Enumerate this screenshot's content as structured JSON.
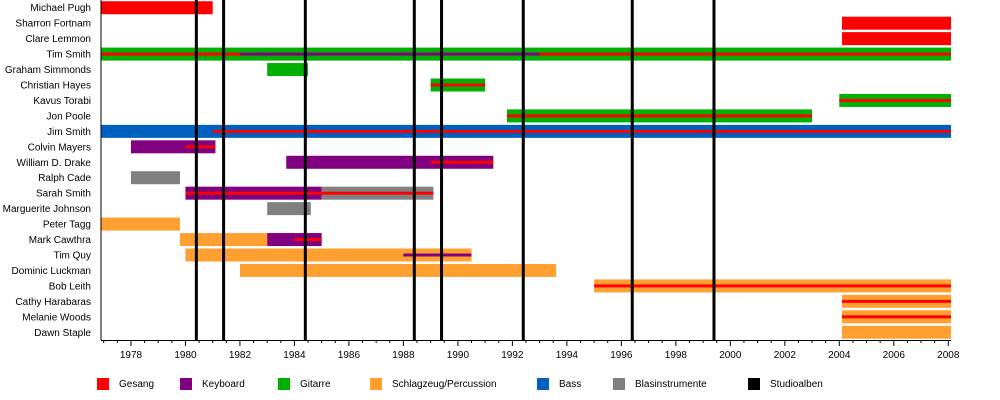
{
  "chart_data": {
    "type": "timeline",
    "title": "",
    "xlim": [
      1976.9,
      2008.1
    ],
    "x_ticks": [
      1978,
      1980,
      1982,
      1984,
      1986,
      1988,
      1990,
      1992,
      1994,
      1996,
      1998,
      2000,
      2002,
      2004,
      2006,
      2008
    ],
    "studio_albums": [
      1980.4,
      1981.4,
      1984.4,
      1988.4,
      1989.4,
      1992.4,
      1996.4,
      1999.4
    ],
    "colors": {
      "Gesang": "#ff0000",
      "Keyboard": "#800080",
      "Gitarre": "#00b000",
      "Schlagzeug/Percussion": "#ffa030",
      "Bass": "#0060c0",
      "Blasinstrumente": "#808080",
      "Studioalben": "#000000"
    },
    "members": [
      {
        "name": "Michael Pugh",
        "bars": [
          {
            "role": "Gesang",
            "start": 1976.9,
            "end": 1981.0
          }
        ],
        "lines": []
      },
      {
        "name": "Sharron Fortnam",
        "bars": [
          {
            "role": "Gesang",
            "start": 2004.1,
            "end": 2008.1
          }
        ],
        "lines": []
      },
      {
        "name": "Clare Lemmon",
        "bars": [
          {
            "role": "Gesang",
            "start": 2004.1,
            "end": 2008.1
          }
        ],
        "lines": []
      },
      {
        "name": "Tim Smith",
        "bars": [
          {
            "role": "Gitarre",
            "start": 1976.9,
            "end": 2008.1
          }
        ],
        "lines": [
          {
            "role": "Gesang",
            "start": 1976.9,
            "end": 1982.0
          },
          {
            "role": "Keyboard",
            "start": 1982.0,
            "end": 1993.0
          },
          {
            "role": "Gesang",
            "start": 1993.0,
            "end": 2008.1
          }
        ]
      },
      {
        "name": "Graham Simmonds",
        "bars": [
          {
            "role": "Gitarre",
            "start": 1983.0,
            "end": 1984.5
          }
        ],
        "lines": []
      },
      {
        "name": "Christian Hayes",
        "bars": [
          {
            "role": "Gitarre",
            "start": 1989.0,
            "end": 1991.0
          }
        ],
        "lines": [
          {
            "role": "Gesang",
            "start": 1989.0,
            "end": 1991.0
          }
        ]
      },
      {
        "name": "Kavus Torabi",
        "bars": [
          {
            "role": "Gitarre",
            "start": 2004.0,
            "end": 2008.1
          }
        ],
        "lines": [
          {
            "role": "Gesang",
            "start": 2004.0,
            "end": 2008.1
          }
        ]
      },
      {
        "name": "Jon Poole",
        "bars": [
          {
            "role": "Gitarre",
            "start": 1991.8,
            "end": 2003.0
          }
        ],
        "lines": [
          {
            "role": "Gesang",
            "start": 1991.8,
            "end": 2003.0
          }
        ]
      },
      {
        "name": "Jim Smith",
        "bars": [
          {
            "role": "Bass",
            "start": 1976.9,
            "end": 2008.1
          }
        ],
        "lines": [
          {
            "role": "Gesang",
            "start": 1981.0,
            "end": 2008.1
          }
        ]
      },
      {
        "name": "Colvin Mayers",
        "bars": [
          {
            "role": "Keyboard",
            "start": 1978.0,
            "end": 1981.1
          }
        ],
        "lines": [
          {
            "role": "Gesang",
            "start": 1980.0,
            "end": 1981.1
          }
        ]
      },
      {
        "name": "William D. Drake",
        "bars": [
          {
            "role": "Keyboard",
            "start": 1983.7,
            "end": 1991.3
          }
        ],
        "lines": [
          {
            "role": "Gesang",
            "start": 1989.0,
            "end": 1991.3
          }
        ]
      },
      {
        "name": "Ralph Cade",
        "bars": [
          {
            "role": "Blasinstrumente",
            "start": 1978.0,
            "end": 1979.8
          }
        ],
        "lines": []
      },
      {
        "name": "Sarah Smith",
        "bars": [
          {
            "role": "Keyboard",
            "start": 1980.0,
            "end": 1985.0
          },
          {
            "role": "Blasinstrumente",
            "start": 1985.0,
            "end": 1989.1
          }
        ],
        "lines": [
          {
            "role": "Gesang",
            "start": 1980.0,
            "end": 1989.1
          }
        ]
      },
      {
        "name": "Marguerite Johnson",
        "bars": [
          {
            "role": "Blasinstrumente",
            "start": 1983.0,
            "end": 1984.6
          }
        ],
        "lines": []
      },
      {
        "name": "Peter Tagg",
        "bars": [
          {
            "role": "Schlagzeug/Percussion",
            "start": 1976.9,
            "end": 1979.8
          }
        ],
        "lines": []
      },
      {
        "name": "Mark Cawthra",
        "bars": [
          {
            "role": "Schlagzeug/Percussion",
            "start": 1979.8,
            "end": 1983.0
          },
          {
            "role": "Keyboard",
            "start": 1983.0,
            "end": 1985.0
          }
        ],
        "lines": [
          {
            "role": "Gesang",
            "start": 1984.0,
            "end": 1985.0
          }
        ]
      },
      {
        "name": "Tim Quy",
        "bars": [
          {
            "role": "Schlagzeug/Percussion",
            "start": 1980.0,
            "end": 1990.5
          }
        ],
        "lines": [
          {
            "role": "Keyboard",
            "start": 1988.0,
            "end": 1990.5
          }
        ]
      },
      {
        "name": "Dominic Luckman",
        "bars": [
          {
            "role": "Schlagzeug/Percussion",
            "start": 1982.0,
            "end": 1993.6
          }
        ],
        "lines": []
      },
      {
        "name": "Bob Leith",
        "bars": [
          {
            "role": "Schlagzeug/Percussion",
            "start": 1995.0,
            "end": 2008.1
          }
        ],
        "lines": [
          {
            "role": "Gesang",
            "start": 1995.0,
            "end": 2008.1
          }
        ]
      },
      {
        "name": "Cathy Harabaras",
        "bars": [
          {
            "role": "Schlagzeug/Percussion",
            "start": 2004.1,
            "end": 2008.1
          }
        ],
        "lines": [
          {
            "role": "Gesang",
            "start": 2004.1,
            "end": 2008.1
          }
        ]
      },
      {
        "name": "Melanie Woods",
        "bars": [
          {
            "role": "Schlagzeug/Percussion",
            "start": 2004.1,
            "end": 2008.1
          }
        ],
        "lines": [
          {
            "role": "Gesang",
            "start": 2004.1,
            "end": 2008.1
          }
        ]
      },
      {
        "name": "Dawn Staple",
        "bars": [
          {
            "role": "Schlagzeug/Percussion",
            "start": 2004.1,
            "end": 2008.1
          }
        ],
        "lines": []
      }
    ],
    "legend": [
      {
        "label": "Gesang",
        "color": "#ff0000"
      },
      {
        "label": "Keyboard",
        "color": "#800080"
      },
      {
        "label": "Gitarre",
        "color": "#00b000"
      },
      {
        "label": "Schlagzeug/Percussion",
        "color": "#ffa030"
      },
      {
        "label": "Bass",
        "color": "#0060c0"
      },
      {
        "label": "Blasinstrumente",
        "color": "#808080"
      },
      {
        "label": "Studioalben",
        "color": "#000000"
      }
    ]
  }
}
